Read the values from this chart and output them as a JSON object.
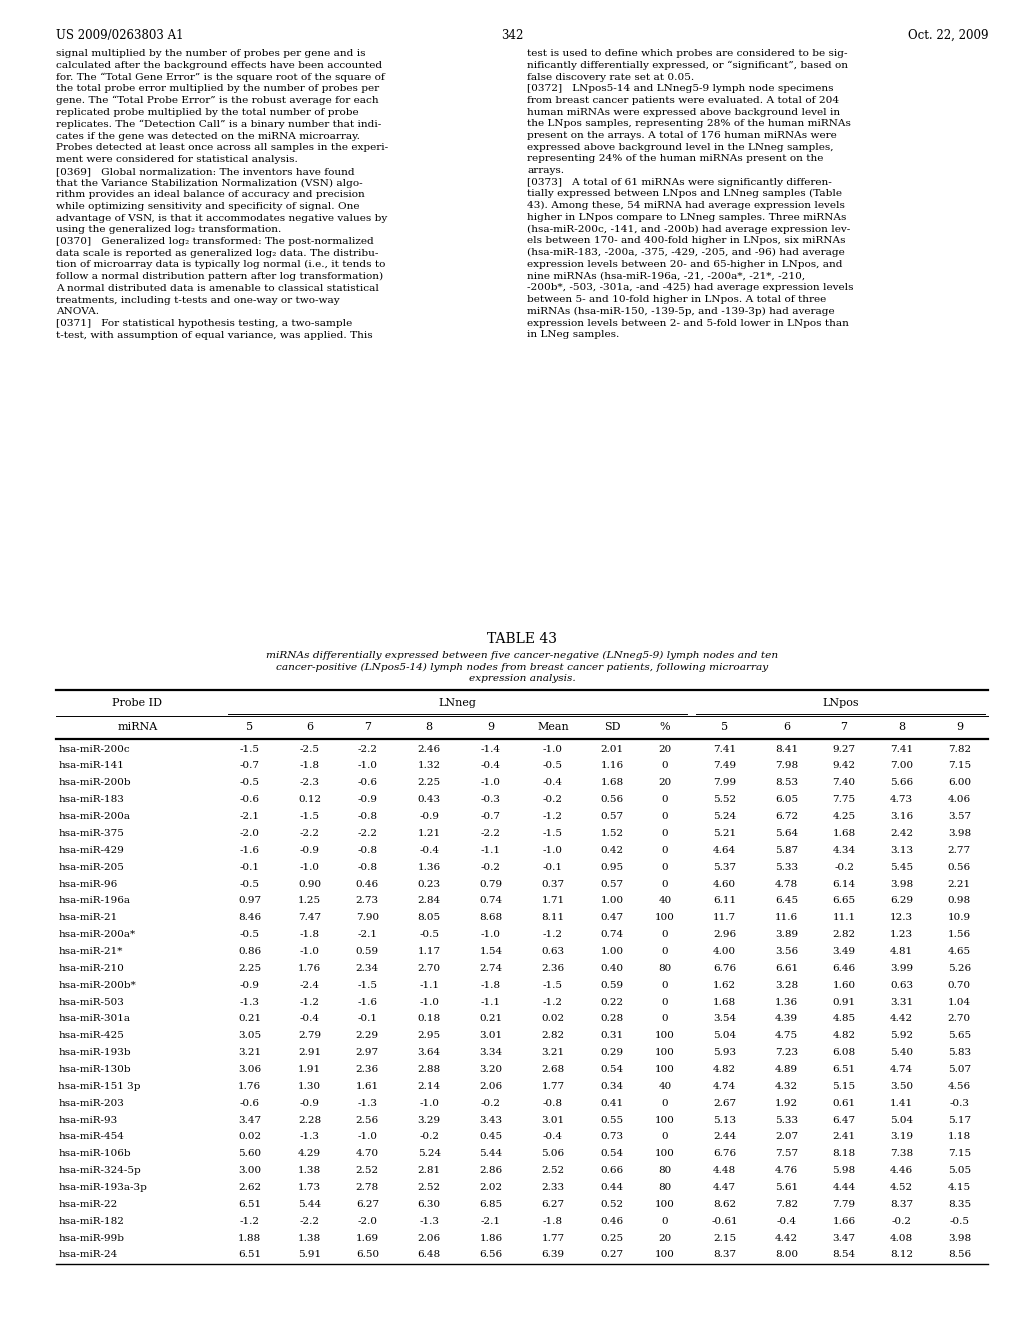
{
  "page_number": "342",
  "patent_number": "US 2009/0263803 A1",
  "patent_date": "Oct. 22, 2009",
  "left_text": [
    "signal multiplied by the number of probes per gene and is",
    "calculated after the background effects have been accounted",
    "for. The “Total Gene Error” is the square root of the square of",
    "the total probe error multiplied by the number of probes per",
    "gene. The “Total Probe Error” is the robust average for each",
    "replicated probe multiplied by the total number of probe",
    "replicates. The “Detection Call” is a binary number that indi-",
    "cates if the gene was detected on the miRNA microarray.",
    "Probes detected at least once across all samples in the experi-",
    "ment were considered for statistical analysis.",
    "[0369]   Global normalization: The inventors have found",
    "that the Variance Stabilization Normalization (VSN) algo-",
    "rithm provides an ideal balance of accuracy and precision",
    "while optimizing sensitivity and specificity of signal. One",
    "advantage of VSN, is that it accommodates negative values by",
    "using the generalized log₂ transformation.",
    "[0370]   Generalized log₂ transformed: The post-normalized",
    "data scale is reported as generalized log₂ data. The distribu-",
    "tion of microarray data is typically log normal (i.e., it tends to",
    "follow a normal distribution pattern after log transformation)",
    "A normal distributed data is amenable to classical statistical",
    "treatments, including t-tests and one-way or two-way",
    "ANOVA.",
    "[0371]   For statistical hypothesis testing, a two-sample",
    "t-test, with assumption of equal variance, was applied. This"
  ],
  "right_text": [
    "test is used to define which probes are considered to be sig-",
    "nificantly differentially expressed, or “significant”, based on",
    "false discovery rate set at 0.05.",
    "[0372]   LNpos5-14 and LNneg5-9 lymph node specimens",
    "from breast cancer patients were evaluated. A total of 204",
    "human miRNAs were expressed above background level in",
    "the LNpos samples, representing 28% of the human miRNAs",
    "present on the arrays. A total of 176 human miRNAs were",
    "expressed above background level in the LNneg samples,",
    "representing 24% of the human miRNAs present on the",
    "arrays.",
    "[0373]   A total of 61 miRNAs were significantly differen-",
    "tially expressed between LNpos and LNneg samples (Table",
    "43). Among these, 54 miRNA had average expression levels",
    "higher in LNpos compare to LNneg samples. Three miRNAs",
    "(hsa-miR-200c, -141, and -200b) had average expression lev-",
    "els between 170- and 400-fold higher in LNpos, six miRNAs",
    "(hsa-miR-183, -200a, -375, -429, -205, and -96) had average",
    "expression levels between 20- and 65-higher in LNpos, and",
    "nine miRNAs (hsa-miR-196a, -21, -200a*, -21*, -210,",
    "-200b*, -503, -301a, -and -425) had average expression levels",
    "between 5- and 10-fold higher in LNpos. A total of three",
    "miRNAs (hsa-miR-150, -139-5p, and -139-3p) had average",
    "expression levels between 2- and 5-fold lower in LNpos than",
    "in LNeg samples."
  ],
  "table_title": "TABLE 43",
  "table_caption": "miRNAs differentially expressed between five cancer-negative (LNneg5-9) lymph nodes and ten\ncancer-positive (LNpos5-14) lymph nodes from breast cancer patients, following microarray\nexpression analysis.",
  "sub_headers": [
    "miRNA",
    "5",
    "6",
    "7",
    "8",
    "9",
    "Mean",
    "SD",
    "%",
    "5",
    "6",
    "7",
    "8",
    "9"
  ],
  "rows": [
    [
      "hsa-miR-200c",
      "-1.5",
      "-2.5",
      "-2.2",
      "2.46",
      "-1.4",
      "-1.0",
      "2.01",
      "20",
      "7.41",
      "8.41",
      "9.27",
      "7.41",
      "7.82"
    ],
    [
      "hsa-miR-141",
      "-0.7",
      "-1.8",
      "-1.0",
      "1.32",
      "-0.4",
      "-0.5",
      "1.16",
      "0",
      "7.49",
      "7.98",
      "9.42",
      "7.00",
      "7.15"
    ],
    [
      "hsa-miR-200b",
      "-0.5",
      "-2.3",
      "-0.6",
      "2.25",
      "-1.0",
      "-0.4",
      "1.68",
      "20",
      "7.99",
      "8.53",
      "7.40",
      "5.66",
      "6.00"
    ],
    [
      "hsa-miR-183",
      "-0.6",
      "0.12",
      "-0.9",
      "0.43",
      "-0.3",
      "-0.2",
      "0.56",
      "0",
      "5.52",
      "6.05",
      "7.75",
      "4.73",
      "4.06"
    ],
    [
      "hsa-miR-200a",
      "-2.1",
      "-1.5",
      "-0.8",
      "-0.9",
      "-0.7",
      "-1.2",
      "0.57",
      "0",
      "5.24",
      "6.72",
      "4.25",
      "3.16",
      "3.57"
    ],
    [
      "hsa-miR-375",
      "-2.0",
      "-2.2",
      "-2.2",
      "1.21",
      "-2.2",
      "-1.5",
      "1.52",
      "0",
      "5.21",
      "5.64",
      "1.68",
      "2.42",
      "3.98"
    ],
    [
      "hsa-miR-429",
      "-1.6",
      "-0.9",
      "-0.8",
      "-0.4",
      "-1.1",
      "-1.0",
      "0.42",
      "0",
      "4.64",
      "5.87",
      "4.34",
      "3.13",
      "2.77"
    ],
    [
      "hsa-miR-205",
      "-0.1",
      "-1.0",
      "-0.8",
      "1.36",
      "-0.2",
      "-0.1",
      "0.95",
      "0",
      "5.37",
      "5.33",
      "-0.2",
      "5.45",
      "0.56"
    ],
    [
      "hsa-miR-96",
      "-0.5",
      "0.90",
      "0.46",
      "0.23",
      "0.79",
      "0.37",
      "0.57",
      "0",
      "4.60",
      "4.78",
      "6.14",
      "3.98",
      "2.21"
    ],
    [
      "hsa-miR-196a",
      "0.97",
      "1.25",
      "2.73",
      "2.84",
      "0.74",
      "1.71",
      "1.00",
      "40",
      "6.11",
      "6.45",
      "6.65",
      "6.29",
      "0.98"
    ],
    [
      "hsa-miR-21",
      "8.46",
      "7.47",
      "7.90",
      "8.05",
      "8.68",
      "8.11",
      "0.47",
      "100",
      "11.7",
      "11.6",
      "11.1",
      "12.3",
      "10.9"
    ],
    [
      "hsa-miR-200a*",
      "-0.5",
      "-1.8",
      "-2.1",
      "-0.5",
      "-1.0",
      "-1.2",
      "0.74",
      "0",
      "2.96",
      "3.89",
      "2.82",
      "1.23",
      "1.56"
    ],
    [
      "hsa-miR-21*",
      "0.86",
      "-1.0",
      "0.59",
      "1.17",
      "1.54",
      "0.63",
      "1.00",
      "0",
      "4.00",
      "3.56",
      "3.49",
      "4.81",
      "4.65"
    ],
    [
      "hsa-miR-210",
      "2.25",
      "1.76",
      "2.34",
      "2.70",
      "2.74",
      "2.36",
      "0.40",
      "80",
      "6.76",
      "6.61",
      "6.46",
      "3.99",
      "5.26"
    ],
    [
      "hsa-miR-200b*",
      "-0.9",
      "-2.4",
      "-1.5",
      "-1.1",
      "-1.8",
      "-1.5",
      "0.59",
      "0",
      "1.62",
      "3.28",
      "1.60",
      "0.63",
      "0.70"
    ],
    [
      "hsa-miR-503",
      "-1.3",
      "-1.2",
      "-1.6",
      "-1.0",
      "-1.1",
      "-1.2",
      "0.22",
      "0",
      "1.68",
      "1.36",
      "0.91",
      "3.31",
      "1.04"
    ],
    [
      "hsa-miR-301a",
      "0.21",
      "-0.4",
      "-0.1",
      "0.18",
      "0.21",
      "0.02",
      "0.28",
      "0",
      "3.54",
      "4.39",
      "4.85",
      "4.42",
      "2.70"
    ],
    [
      "hsa-miR-425",
      "3.05",
      "2.79",
      "2.29",
      "2.95",
      "3.01",
      "2.82",
      "0.31",
      "100",
      "5.04",
      "4.75",
      "4.82",
      "5.92",
      "5.65"
    ],
    [
      "hsa-miR-193b",
      "3.21",
      "2.91",
      "2.97",
      "3.64",
      "3.34",
      "3.21",
      "0.29",
      "100",
      "5.93",
      "7.23",
      "6.08",
      "5.40",
      "5.83"
    ],
    [
      "hsa-miR-130b",
      "3.06",
      "1.91",
      "2.36",
      "2.88",
      "3.20",
      "2.68",
      "0.54",
      "100",
      "4.82",
      "4.89",
      "6.51",
      "4.74",
      "5.07"
    ],
    [
      "hsa-miR-151 3p",
      "1.76",
      "1.30",
      "1.61",
      "2.14",
      "2.06",
      "1.77",
      "0.34",
      "40",
      "4.74",
      "4.32",
      "5.15",
      "3.50",
      "4.56"
    ],
    [
      "hsa-miR-203",
      "-0.6",
      "-0.9",
      "-1.3",
      "-1.0",
      "-0.2",
      "-0.8",
      "0.41",
      "0",
      "2.67",
      "1.92",
      "0.61",
      "1.41",
      "-0.3"
    ],
    [
      "hsa-miR-93",
      "3.47",
      "2.28",
      "2.56",
      "3.29",
      "3.43",
      "3.01",
      "0.55",
      "100",
      "5.13",
      "5.33",
      "6.47",
      "5.04",
      "5.17"
    ],
    [
      "hsa-miR-454",
      "0.02",
      "-1.3",
      "-1.0",
      "-0.2",
      "0.45",
      "-0.4",
      "0.73",
      "0",
      "2.44",
      "2.07",
      "2.41",
      "3.19",
      "1.18"
    ],
    [
      "hsa-miR-106b",
      "5.60",
      "4.29",
      "4.70",
      "5.24",
      "5.44",
      "5.06",
      "0.54",
      "100",
      "6.76",
      "7.57",
      "8.18",
      "7.38",
      "7.15"
    ],
    [
      "hsa-miR-324-5p",
      "3.00",
      "1.38",
      "2.52",
      "2.81",
      "2.86",
      "2.52",
      "0.66",
      "80",
      "4.48",
      "4.76",
      "5.98",
      "4.46",
      "5.05"
    ],
    [
      "hsa-miR-193a-3p",
      "2.62",
      "1.73",
      "2.78",
      "2.52",
      "2.02",
      "2.33",
      "0.44",
      "80",
      "4.47",
      "5.61",
      "4.44",
      "4.52",
      "4.15"
    ],
    [
      "hsa-miR-22",
      "6.51",
      "5.44",
      "6.27",
      "6.30",
      "6.85",
      "6.27",
      "0.52",
      "100",
      "8.62",
      "7.82",
      "7.79",
      "8.37",
      "8.35"
    ],
    [
      "hsa-miR-182",
      "-1.2",
      "-2.2",
      "-2.0",
      "-1.3",
      "-2.1",
      "-1.8",
      "0.46",
      "0",
      "-0.61",
      "-0.4",
      "1.66",
      "-0.2",
      "-0.5"
    ],
    [
      "hsa-miR-99b",
      "1.88",
      "1.38",
      "1.69",
      "2.06",
      "1.86",
      "1.77",
      "0.25",
      "20",
      "2.15",
      "4.42",
      "3.47",
      "4.08",
      "3.98"
    ],
    [
      "hsa-miR-24",
      "6.51",
      "5.91",
      "6.50",
      "6.48",
      "6.56",
      "6.39",
      "0.27",
      "100",
      "8.37",
      "8.00",
      "8.54",
      "8.12",
      "8.56"
    ]
  ]
}
